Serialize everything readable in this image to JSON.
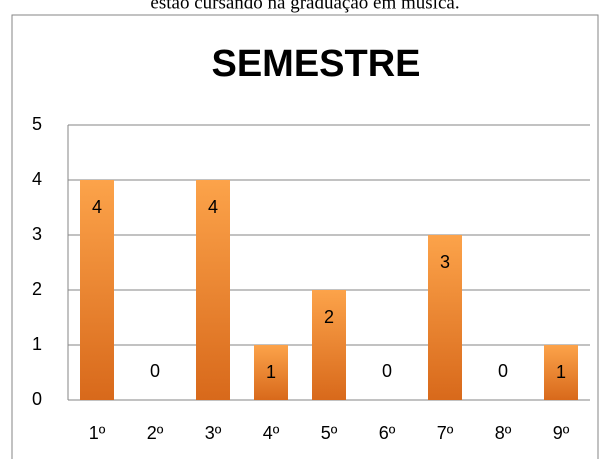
{
  "caption": "estão cursando na graduação em música.",
  "chart_data": {
    "type": "bar",
    "title": "SEMESTRE",
    "categories": [
      "1º",
      "2º",
      "3º",
      "4º",
      "5º",
      "6º",
      "7º",
      "8º",
      "9º"
    ],
    "values": [
      4,
      0,
      4,
      1,
      2,
      0,
      3,
      0,
      1
    ],
    "color": "#f7941d",
    "ylim": [
      0,
      5
    ],
    "yticks": [
      0,
      1,
      2,
      3,
      4,
      5
    ],
    "grid": true
  }
}
